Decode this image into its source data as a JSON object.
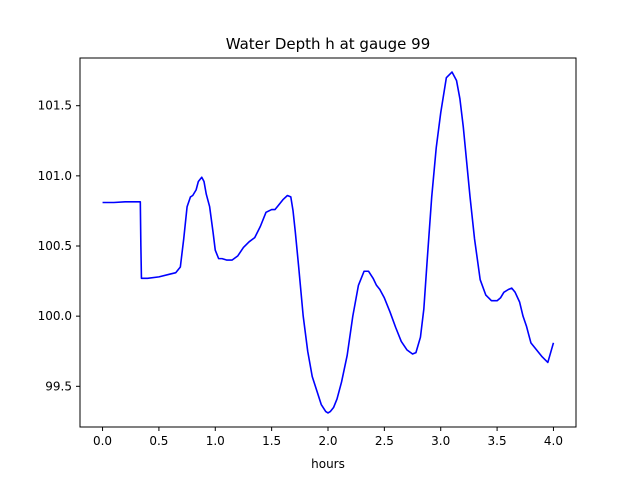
{
  "chart_data": {
    "type": "line",
    "title": "Water Depth h at gauge 99",
    "xlabel": "hours",
    "ylabel": "",
    "xlim": [
      -0.2,
      4.2
    ],
    "ylim": [
      99.21,
      101.84
    ],
    "grid": false,
    "line_color": "#0000ff",
    "xticks": [
      0.0,
      0.5,
      1.0,
      1.5,
      2.0,
      2.5,
      3.0,
      3.5,
      4.0
    ],
    "xtick_labels": [
      "0.0",
      "0.5",
      "1.0",
      "1.5",
      "2.0",
      "2.5",
      "3.0",
      "3.5",
      "4.0"
    ],
    "yticks": [
      99.5,
      100.0,
      100.5,
      101.0,
      101.5
    ],
    "ytick_labels": [
      "99.5",
      "100.0",
      "100.5",
      "101.0",
      "101.5"
    ],
    "series": [
      {
        "name": "",
        "x": [
          0.0,
          0.1,
          0.2,
          0.3,
          0.335,
          0.34,
          0.345,
          0.4,
          0.5,
          0.6,
          0.65,
          0.69,
          0.72,
          0.75,
          0.78,
          0.8,
          0.83,
          0.85,
          0.88,
          0.9,
          0.92,
          0.95,
          0.98,
          1.0,
          1.03,
          1.06,
          1.1,
          1.15,
          1.2,
          1.25,
          1.3,
          1.35,
          1.4,
          1.45,
          1.5,
          1.53,
          1.56,
          1.6,
          1.64,
          1.67,
          1.69,
          1.71,
          1.74,
          1.78,
          1.82,
          1.86,
          1.9,
          1.94,
          1.98,
          2.0,
          2.02,
          2.05,
          2.08,
          2.12,
          2.17,
          2.22,
          2.27,
          2.32,
          2.36,
          2.4,
          2.43,
          2.46,
          2.5,
          2.55,
          2.6,
          2.65,
          2.7,
          2.75,
          2.78,
          2.82,
          2.85,
          2.88,
          2.92,
          2.96,
          3.0,
          3.05,
          3.1,
          3.14,
          3.17,
          3.2,
          3.23,
          3.26,
          3.3,
          3.35,
          3.4,
          3.45,
          3.5,
          3.53,
          3.56,
          3.6,
          3.63,
          3.66,
          3.7,
          3.73,
          3.76,
          3.78,
          3.8,
          3.85,
          3.9,
          3.95,
          4.0
        ],
        "values": [
          100.81,
          100.81,
          100.815,
          100.815,
          100.815,
          100.5,
          100.27,
          100.27,
          100.28,
          100.3,
          100.31,
          100.35,
          100.55,
          100.78,
          100.85,
          100.86,
          100.9,
          100.96,
          100.99,
          100.96,
          100.87,
          100.78,
          100.6,
          100.47,
          100.41,
          100.41,
          100.4,
          100.4,
          100.43,
          100.49,
          100.53,
          100.56,
          100.64,
          100.74,
          100.76,
          100.76,
          100.79,
          100.83,
          100.86,
          100.85,
          100.75,
          100.6,
          100.35,
          100.0,
          99.75,
          99.57,
          99.47,
          99.37,
          99.32,
          99.31,
          99.32,
          99.35,
          99.41,
          99.53,
          99.72,
          100.0,
          100.22,
          100.32,
          100.32,
          100.27,
          100.22,
          100.19,
          100.13,
          100.03,
          99.92,
          99.82,
          99.76,
          99.73,
          99.74,
          99.85,
          100.05,
          100.4,
          100.85,
          101.2,
          101.45,
          101.7,
          101.74,
          101.68,
          101.55,
          101.35,
          101.1,
          100.85,
          100.55,
          100.26,
          100.15,
          100.11,
          100.11,
          100.13,
          100.17,
          100.19,
          100.2,
          100.17,
          100.1,
          100.0,
          99.93,
          99.87,
          99.81,
          99.76,
          99.71,
          99.67,
          99.81
        ]
      }
    ]
  }
}
